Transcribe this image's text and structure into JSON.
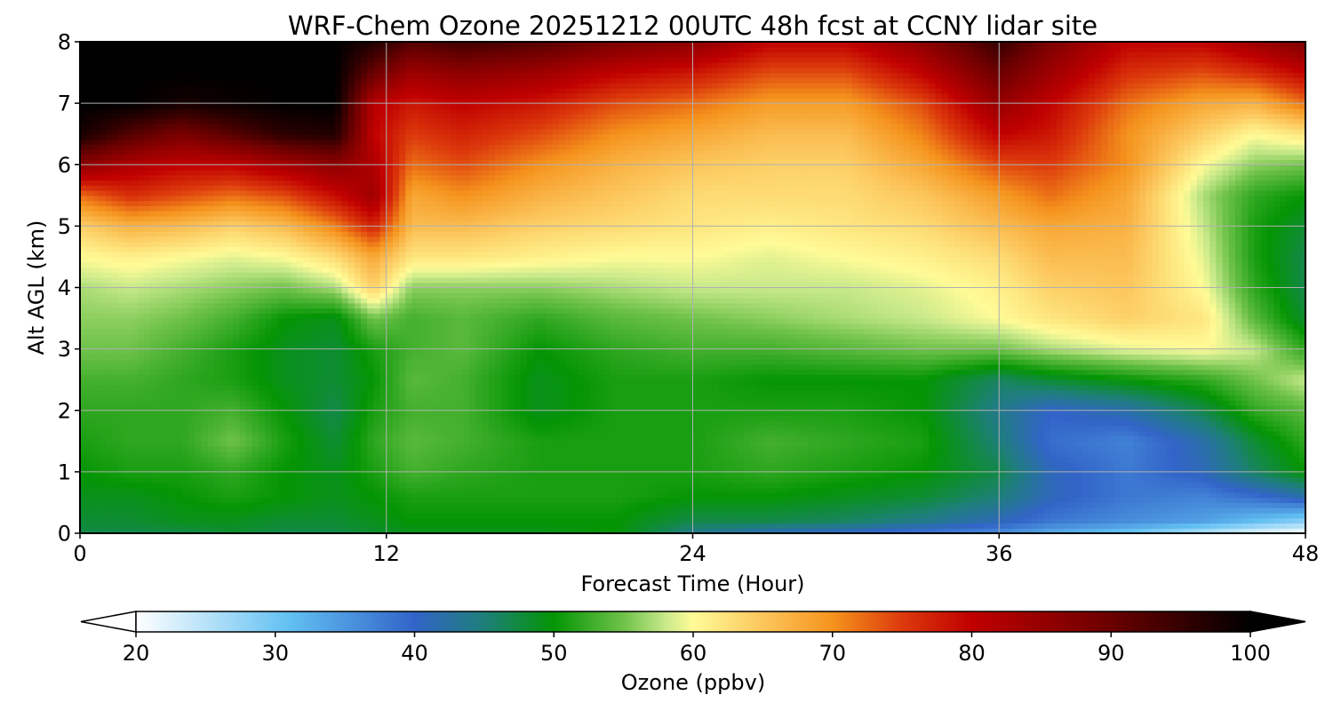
{
  "chart_data": {
    "type": "heatmap",
    "title": "WRF-Chem Ozone  20251212 00UTC 48h fcst at CCNY lidar site",
    "xlabel": "Forecast Time (Hour)",
    "ylabel": "Alt AGL (km)",
    "xlim": [
      0,
      48
    ],
    "ylim": [
      0,
      8
    ],
    "xticks": [
      "0",
      "12",
      "24",
      "36",
      "48"
    ],
    "yticks": [
      "0",
      "1",
      "2",
      "3",
      "4",
      "5",
      "6",
      "7",
      "8"
    ],
    "grid": true,
    "colorbar": {
      "label": "Ozone  (ppbv)",
      "range": [
        20,
        100
      ],
      "ticks": [
        "20",
        "30",
        "40",
        "50",
        "60",
        "70",
        "80",
        "90",
        "100"
      ],
      "extend": "both",
      "color_stops": [
        {
          "value": 20,
          "color": "#ffffff"
        },
        {
          "value": 31,
          "color": "#62c0f2"
        },
        {
          "value": 40,
          "color": "#3264c8"
        },
        {
          "value": 45,
          "color": "#1e7f7a"
        },
        {
          "value": 50,
          "color": "#049504"
        },
        {
          "value": 55,
          "color": "#6fc24a"
        },
        {
          "value": 58,
          "color": "#c8e98a"
        },
        {
          "value": 60,
          "color": "#fffb97"
        },
        {
          "value": 65,
          "color": "#fcc65c"
        },
        {
          "value": 70,
          "color": "#f5931d"
        },
        {
          "value": 75,
          "color": "#dc3a0c"
        },
        {
          "value": 80,
          "color": "#c00000"
        },
        {
          "value": 90,
          "color": "#6b0000"
        },
        {
          "value": 100,
          "color": "#000000"
        }
      ]
    },
    "grid_hours": [
      0,
      2,
      4,
      6,
      8,
      10,
      11.5,
      13,
      15,
      18,
      21,
      24,
      27,
      30,
      33,
      36,
      38,
      41,
      44,
      46,
      48
    ],
    "grid_altitudes_km": [
      0,
      0.2,
      0.6,
      1,
      1.5,
      2,
      2.5,
      3,
      3.5,
      4,
      4.5,
      5,
      5.5,
      6,
      6.5,
      7,
      7.5,
      8
    ],
    "values_ppbv": [
      [
        47,
        47,
        47,
        48,
        47,
        47,
        48,
        49,
        49,
        49,
        50,
        44,
        41,
        40,
        38,
        36,
        33,
        30,
        25,
        22,
        20
      ],
      [
        48,
        48,
        49,
        49,
        48,
        48,
        49,
        50,
        50,
        50,
        50,
        47,
        47,
        46,
        44,
        41,
        38,
        36,
        34,
        31,
        28
      ],
      [
        49,
        49,
        50,
        51,
        50,
        49,
        50,
        51,
        51,
        51,
        51,
        50,
        50,
        49,
        48,
        45,
        41,
        38,
        37,
        39,
        42
      ],
      [
        50,
        51,
        51,
        52,
        50,
        49,
        51,
        53,
        52,
        51,
        51,
        51,
        52,
        51,
        50,
        47,
        41,
        38,
        41,
        46,
        50
      ],
      [
        51,
        52,
        52,
        55,
        51,
        48,
        52,
        54,
        53,
        51,
        51,
        51,
        53,
        52,
        51,
        45,
        39,
        37,
        42,
        48,
        52
      ],
      [
        52,
        52,
        52,
        53,
        50,
        47,
        51,
        53,
        53,
        49,
        51,
        51,
        51,
        51,
        50,
        44,
        40,
        42,
        47,
        52,
        54
      ],
      [
        53,
        53,
        52,
        51,
        49,
        48,
        50,
        54,
        53,
        49,
        51,
        51,
        50,
        50,
        50,
        46,
        48,
        50,
        52,
        55,
        58
      ],
      [
        55,
        55,
        53,
        51,
        49,
        48,
        51,
        53,
        54,
        50,
        52,
        53,
        53,
        54,
        55,
        55,
        57,
        59,
        60,
        58,
        52
      ],
      [
        56,
        56,
        55,
        53,
        50,
        49,
        55,
        53,
        54,
        52,
        54,
        55,
        56,
        57,
        58,
        60,
        62,
        64,
        62,
        54,
        48
      ],
      [
        57,
        58,
        57,
        56,
        55,
        57,
        64,
        56,
        56,
        56,
        57,
        58,
        58,
        58,
        59,
        61,
        64,
        65,
        60,
        52,
        47
      ],
      [
        60,
        61,
        60,
        59,
        60,
        63,
        68,
        62,
        62,
        61,
        60,
        60,
        59,
        60,
        61,
        63,
        66,
        66,
        59,
        51,
        47
      ],
      [
        64,
        67,
        66,
        64,
        66,
        71,
        77,
        66,
        66,
        64,
        63,
        62,
        61,
        62,
        63,
        66,
        68,
        67,
        58,
        51,
        48
      ],
      [
        72,
        76,
        74,
        72,
        74,
        79,
        84,
        68,
        70,
        67,
        65,
        63,
        63,
        63,
        65,
        69,
        72,
        68,
        57,
        52,
        50
      ],
      [
        86,
        82,
        80,
        80,
        83,
        86,
        82,
        72,
        74,
        70,
        67,
        65,
        64,
        64,
        68,
        74,
        75,
        70,
        60,
        56,
        55
      ],
      [
        98,
        92,
        88,
        92,
        96,
        97,
        80,
        75,
        77,
        74,
        70,
        68,
        66,
        66,
        71,
        80,
        78,
        70,
        64,
        60,
        62
      ],
      [
        100,
        100,
        98,
        99,
        100,
        100,
        81,
        78,
        80,
        78,
        74,
        72,
        69,
        69,
        74,
        85,
        80,
        72,
        68,
        67,
        72
      ],
      [
        100,
        100,
        100,
        100,
        100,
        100,
        90,
        84,
        86,
        84,
        80,
        78,
        74,
        74,
        80,
        90,
        84,
        76,
        74,
        76,
        80
      ],
      [
        100,
        100,
        100,
        100,
        100,
        100,
        97,
        92,
        94,
        92,
        88,
        86,
        80,
        80,
        86,
        95,
        88,
        80,
        80,
        84,
        88
      ]
    ]
  }
}
